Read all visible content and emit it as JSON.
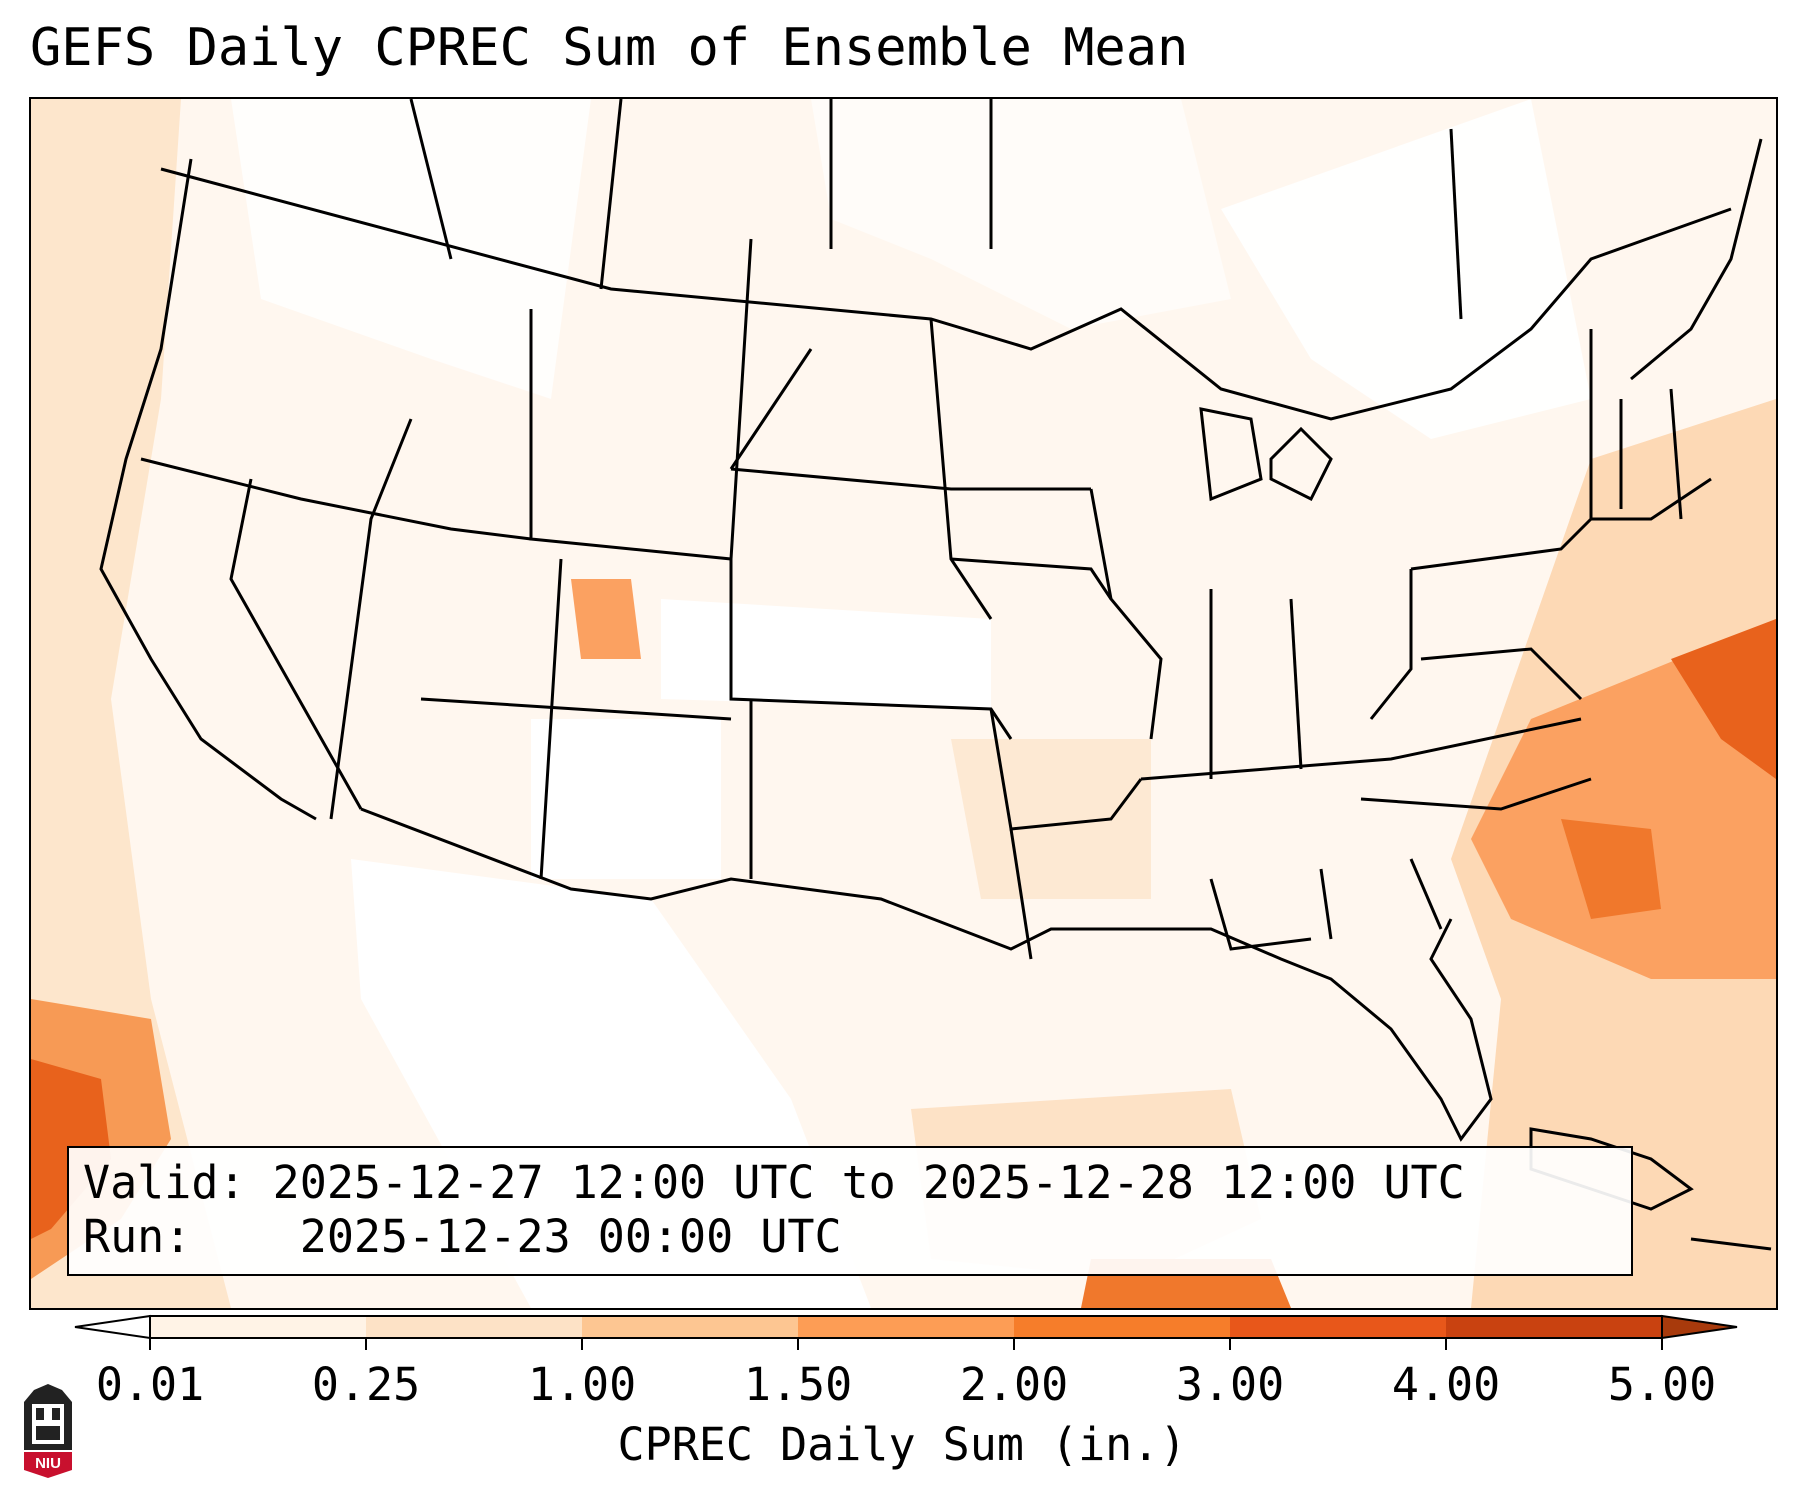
{
  "title": "GEFS Daily CPREC Sum of Ensemble Mean",
  "info": {
    "valid_label": "Valid:",
    "valid_value": "2025-12-27 12:00 UTC to 2025-12-28 12:00 UTC",
    "run_label": "Run:",
    "run_value": "2025-12-23 00:00 UTC"
  },
  "colorbar": {
    "label": "CPREC Daily Sum (in.)",
    "ticks": [
      "0.01",
      "0.25",
      "1.00",
      "1.50",
      "2.00",
      "3.00",
      "4.00",
      "5.00"
    ],
    "colors": [
      "#fff3e6",
      "#fde2c6",
      "#fdc692",
      "#fd9d55",
      "#f67d2a",
      "#e8571a",
      "#c94210"
    ],
    "extend": "both"
  },
  "map": {
    "projection": "Lambert Conformal (CONUS)",
    "field": "CPREC daily sum, ensemble mean",
    "heavy_areas": [
      "Western Atlantic off the Carolinas",
      "Eastern Pacific off Baja California",
      "Southern Gulf of Mexico / Yucatan"
    ],
    "colors": {
      "ocean_light": "#fff7ef",
      "border": "#000000"
    }
  },
  "logo": {
    "text": "NIU"
  }
}
